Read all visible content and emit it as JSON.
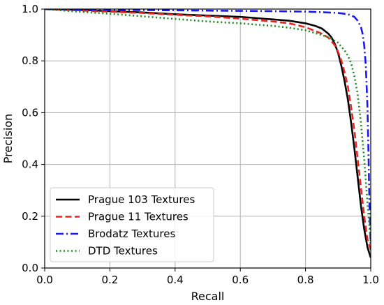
{
  "chart_data": {
    "type": "line",
    "title": "",
    "xlabel": "Recall",
    "ylabel": "Precision",
    "xlim": [
      0.0,
      1.0
    ],
    "ylim": [
      0.0,
      1.0
    ],
    "xticks": [
      "0.0",
      "0.2",
      "0.4",
      "0.6",
      "0.8",
      "1.0"
    ],
    "yticks": [
      "0.0",
      "0.2",
      "0.4",
      "0.6",
      "0.8",
      "1.0"
    ],
    "grid": true,
    "legend_position": "lower-left",
    "series": [
      {
        "name": "Prague 103 Textures",
        "color": "#000000",
        "style": "solid",
        "x": [
          0.0,
          0.1,
          0.2,
          0.3,
          0.4,
          0.5,
          0.6,
          0.7,
          0.75,
          0.8,
          0.83,
          0.85,
          0.87,
          0.88,
          0.89,
          0.9,
          0.91,
          0.92,
          0.93,
          0.94,
          0.95,
          0.96,
          0.97,
          0.98,
          0.99,
          1.0
        ],
        "y": [
          1.0,
          0.997,
          0.992,
          0.987,
          0.98,
          0.975,
          0.97,
          0.96,
          0.955,
          0.945,
          0.935,
          0.925,
          0.905,
          0.89,
          0.865,
          0.83,
          0.78,
          0.72,
          0.65,
          0.56,
          0.46,
          0.35,
          0.24,
          0.15,
          0.08,
          0.04
        ]
      },
      {
        "name": "Prague 11 Textures",
        "color": "#e8251f",
        "style": "dashed",
        "x": [
          0.0,
          0.1,
          0.2,
          0.3,
          0.4,
          0.5,
          0.6,
          0.7,
          0.75,
          0.8,
          0.83,
          0.85,
          0.87,
          0.88,
          0.89,
          0.9,
          0.91,
          0.92,
          0.93,
          0.94,
          0.95,
          0.96,
          0.97,
          0.98,
          0.99,
          1.0
        ],
        "y": [
          1.0,
          0.995,
          0.99,
          0.985,
          0.978,
          0.972,
          0.963,
          0.952,
          0.945,
          0.93,
          0.915,
          0.905,
          0.89,
          0.875,
          0.86,
          0.835,
          0.8,
          0.755,
          0.7,
          0.62,
          0.53,
          0.42,
          0.31,
          0.2,
          0.11,
          0.07
        ]
      },
      {
        "name": "Brodatz Textures",
        "color": "#1a1aee",
        "style": "dashdot",
        "x": [
          0.0,
          0.1,
          0.2,
          0.3,
          0.4,
          0.5,
          0.6,
          0.7,
          0.8,
          0.85,
          0.9,
          0.93,
          0.95,
          0.96,
          0.97,
          0.975,
          0.98,
          0.985,
          0.99,
          0.993,
          0.996,
          1.0
        ],
        "y": [
          1.0,
          0.998,
          0.997,
          0.996,
          0.995,
          0.994,
          0.993,
          0.992,
          0.99,
          0.988,
          0.985,
          0.98,
          0.97,
          0.955,
          0.93,
          0.905,
          0.86,
          0.78,
          0.62,
          0.45,
          0.25,
          0.08
        ]
      },
      {
        "name": "DTD Textures",
        "color": "#1e8a1e",
        "style": "dotted",
        "x": [
          0.0,
          0.1,
          0.2,
          0.3,
          0.4,
          0.5,
          0.6,
          0.7,
          0.75,
          0.8,
          0.85,
          0.88,
          0.9,
          0.92,
          0.93,
          0.94,
          0.95,
          0.96,
          0.97,
          0.98,
          0.99,
          1.0
        ],
        "y": [
          1.0,
          0.99,
          0.982,
          0.972,
          0.962,
          0.952,
          0.945,
          0.935,
          0.928,
          0.918,
          0.9,
          0.885,
          0.87,
          0.84,
          0.82,
          0.79,
          0.74,
          0.67,
          0.56,
          0.42,
          0.25,
          0.1
        ]
      }
    ]
  }
}
